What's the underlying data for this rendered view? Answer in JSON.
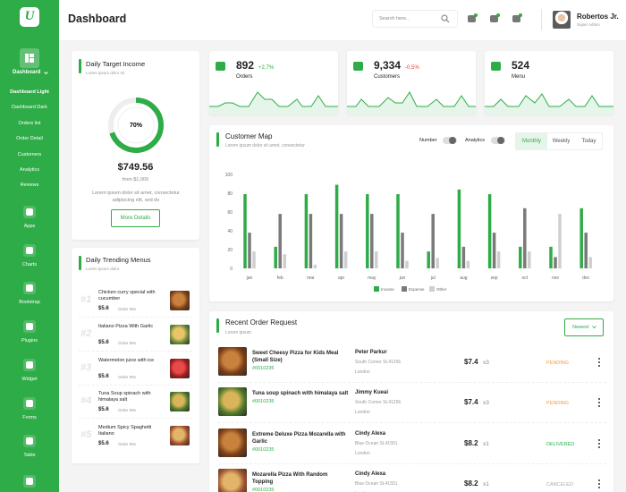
{
  "sidebar": {
    "logo": "U",
    "menu_title": "Dashboard",
    "submenu": [
      "Dashboard Light",
      "Dashboard Dark",
      "Orders list",
      "Order Detail",
      "Customers",
      "Analytics",
      "Reviews"
    ],
    "items": [
      "Apps",
      "Charts",
      "Bootstrap",
      "Plugins",
      "Widget",
      "Forms",
      "Table"
    ]
  },
  "header": {
    "title": "Dashboard",
    "search_placeholder": "Search here..",
    "user_name": "Robertos Jr.",
    "user_role": "Super Admin"
  },
  "target_card": {
    "title": "Daily Target Income",
    "subtitle": "Lorem ipsum dolor sit",
    "progress": {
      "value": 70,
      "label": "70%"
    },
    "amount": "$749.56",
    "from": "from $1,000",
    "description": "Lorem ipsum dolor sit amet, consectetur adipiscing elit, sed do",
    "button": "More Details"
  },
  "stats": [
    {
      "value": "892",
      "change": "+2,7%",
      "change_color": "#2eac47",
      "label": "Orders"
    },
    {
      "value": "9,334",
      "change": "-0,5%",
      "change_color": "#e0413a",
      "label": "Customers"
    },
    {
      "value": "524",
      "label": "Menu"
    }
  ],
  "customer_map": {
    "type": "bar",
    "title": "Customer Map",
    "subtitle": "Lorem ipsum dolor sit amet, consectetur",
    "toggles": [
      "Number",
      "Analytics"
    ],
    "tabs": [
      "Monthly",
      "Weekly",
      "Today"
    ],
    "categories": [
      "jan",
      "feb",
      "mar",
      "apr",
      "may",
      "jun",
      "jul",
      "aug",
      "sep",
      "oct",
      "nov",
      "dec"
    ],
    "series": [
      {
        "name": "Income",
        "color": "#2eac47",
        "values": [
          79,
          23,
          79,
          89,
          79,
          79,
          18,
          84,
          79,
          23,
          23,
          64
        ]
      },
      {
        "name": "Expense",
        "color": "#7a7a7a",
        "values": [
          38,
          58,
          58,
          58,
          58,
          38,
          58,
          23,
          38,
          64,
          12,
          38
        ]
      },
      {
        "name": "Other",
        "color": "#cfcfcf",
        "values": [
          18,
          15,
          4,
          18,
          18,
          8,
          11,
          8,
          18,
          18,
          58,
          12
        ]
      }
    ],
    "ylim": [
      0,
      100
    ],
    "yticks": [
      0,
      20,
      40,
      60,
      80,
      100
    ]
  },
  "trending": {
    "title": "Daily Trending Menus",
    "subtitle": "Lorem ipsum dolor",
    "items": [
      {
        "rank": "#1",
        "name": "Chicken curry special with cucumber",
        "price": "$5.6",
        "orders": "Order 89x"
      },
      {
        "rank": "#2",
        "name": "Italiano Pizza With Garlic",
        "price": "$5.6",
        "orders": "Order 89x"
      },
      {
        "rank": "#3",
        "name": "Watermelon juice with ice",
        "price": "$5.6",
        "orders": "Order 89x"
      },
      {
        "rank": "#4",
        "name": "Tuna Soup spinach with himalaya salt",
        "price": "$5.6",
        "orders": "Order 89x"
      },
      {
        "rank": "#5",
        "name": "Medium Spicy Spaghetti Italiano",
        "price": "$5.6",
        "orders": "Order 89x"
      }
    ]
  },
  "orders": {
    "title": "Recent Order Request",
    "subtitle": "Lorem ipsum",
    "sort": "Newest",
    "rows": [
      {
        "item": "Sweet Cheesy Pizza for Kids Meal (Small Size)",
        "id": "#0010235",
        "customer": "Peter Parkur",
        "address": "South Corner St.41256",
        "city": "London",
        "price": "$7.4",
        "qty": "x3",
        "status": "PENDING",
        "status_color": "#f29c38"
      },
      {
        "item": "Tuna soup spinach with himalaya salt",
        "id": "#0010235",
        "customer": "Jimmy Kueai",
        "address": "South Corner St.41256",
        "city": "London",
        "price": "$7.4",
        "qty": "x3",
        "status": "PENDING",
        "status_color": "#f29c38"
      },
      {
        "item": "Extreme Deluxe Pizza Mozarella with Garlic",
        "id": "#0010235",
        "customer": "Cindy Alexa",
        "address": "Blue Ocean St.41551",
        "city": "London",
        "price": "$8.2",
        "qty": "x1",
        "status": "DELIVERED",
        "status_color": "#2eac47"
      },
      {
        "item": "Mozarella Pizza With Random Topping",
        "id": "#0010235",
        "customer": "Cindy Alexa",
        "address": "Blue Ocean St.41551",
        "city": "London",
        "price": "$8.2",
        "qty": "x1",
        "status": "CANCELED",
        "status_color": "#aaaaaa"
      }
    ]
  }
}
